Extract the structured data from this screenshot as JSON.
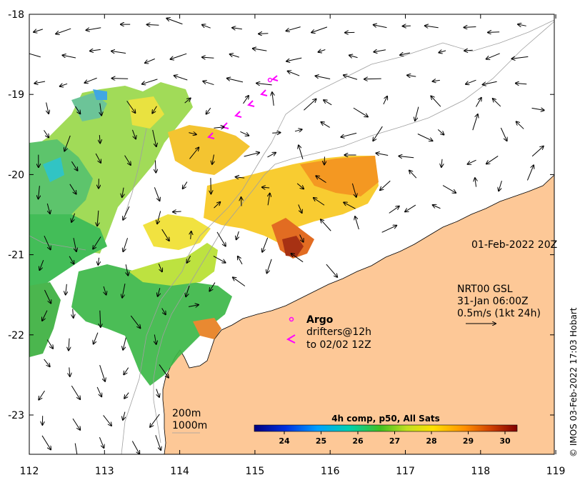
{
  "map": {
    "x_ticks": [
      "112",
      "113",
      "114",
      "115",
      "116",
      "117",
      "118",
      "119"
    ],
    "y_ticks": [
      "-18",
      "-19",
      "-20",
      "-21",
      "-22",
      "-23"
    ],
    "land_color": "#fdc897",
    "ocean_color": "#ffffff"
  },
  "info": {
    "date": "01-Feb-2022 20Z",
    "product": "NRT00 GSL",
    "time": "31-Jan 06:00Z",
    "scale": "0.5m/s (1kt 24h)"
  },
  "argo": {
    "label": "Argo",
    "drifters": "drifters@12h",
    "until": "to 02/02 12Z",
    "color": "#ff00ff"
  },
  "isobaths": {
    "shallow": "200m",
    "deep": "1000m"
  },
  "colorbar": {
    "title": "4h comp, p50, All Sats",
    "ticks": [
      "24",
      "25",
      "26",
      "27",
      "28",
      "29",
      "30"
    ],
    "colors": [
      "#00007f",
      "#0040ff",
      "#00bfff",
      "#20d080",
      "#40c020",
      "#c0e020",
      "#ffd000",
      "#ff8000",
      "#c03000",
      "#800000"
    ]
  },
  "credit": "© IMOS 03-Feb-2022 17:03 Hobart"
}
